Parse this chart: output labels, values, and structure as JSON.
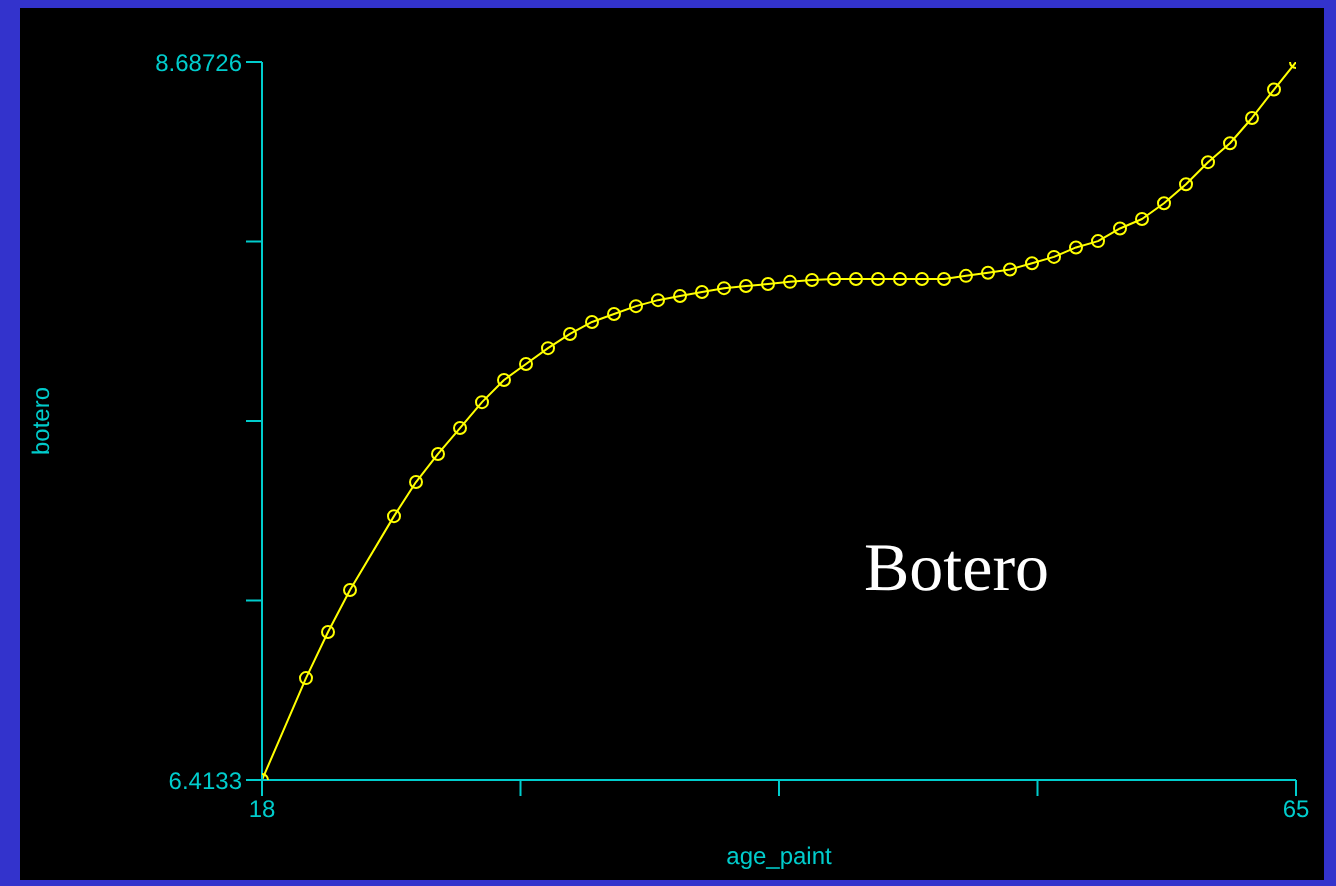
{
  "chart_data": {
    "type": "line",
    "xlabel": "age_paint",
    "ylabel": "botero",
    "annotations": [
      "Botero"
    ],
    "x": [
      18,
      20,
      21,
      22,
      24,
      25,
      26,
      27,
      28,
      29,
      30,
      31,
      32,
      33,
      34,
      35,
      36,
      37,
      38,
      39,
      40,
      41,
      42,
      43,
      44,
      45,
      46,
      47,
      48,
      49,
      50,
      51,
      52,
      53,
      54,
      55,
      56,
      57,
      58,
      59,
      60,
      61,
      62,
      63,
      64,
      65
    ],
    "series": [
      {
        "color": "#ffff00",
        "values": [
          6.4133,
          6.736,
          6.882,
          7.015,
          7.249,
          7.357,
          7.446,
          7.528,
          7.61,
          7.68,
          7.731,
          7.781,
          7.826,
          7.864,
          7.889,
          7.914,
          7.933,
          7.946,
          7.959,
          7.971,
          7.978,
          7.984,
          7.991,
          7.997,
          8.0,
          8.0,
          8.0,
          8.0,
          8.0,
          8.0,
          8.01,
          8.02,
          8.03,
          8.05,
          8.07,
          8.1,
          8.12,
          8.16,
          8.19,
          8.24,
          8.3,
          8.37,
          8.43,
          8.51,
          8.6,
          8.687
        ]
      }
    ],
    "xlim": [
      18,
      65
    ],
    "xticks": [
      18,
      {
        "value": 29.75,
        "label": null
      },
      {
        "value": 41.5,
        "label": null
      },
      {
        "value": 53.25,
        "label": null
      },
      65
    ],
    "ylim": [
      6.4133,
      8.68726
    ],
    "yticks": [
      6.4133,
      {
        "value": 6.98179,
        "label": null
      },
      {
        "value": 7.55028,
        "label": null
      },
      {
        "value": 8.11877,
        "label": null
      },
      8.68726
    ],
    "grid": false,
    "marker": "circle",
    "line_style": "solid"
  }
}
